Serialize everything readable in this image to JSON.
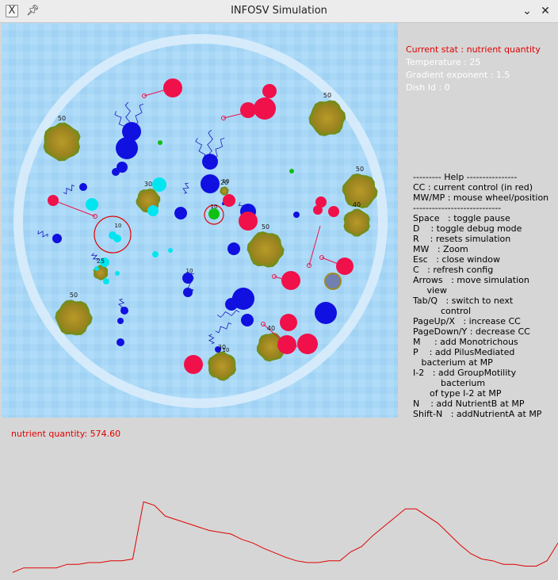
{
  "window": {
    "title": "INFOSV Simulation",
    "app_icon": "x-app-icon",
    "pin_icon": "pin-icon",
    "minimize_icon": "chevron-down-icon",
    "close_icon": "close-icon",
    "minimize_glyph": "⌄",
    "close_glyph": "✕"
  },
  "stats": {
    "current_stat": "Current stat : nutrient quantity",
    "temperature": "Temperature : 25",
    "gradient": "Gradient exponent : 1.5",
    "dish_id": "Dish Id : 0"
  },
  "help": {
    "lines": [
      "--------- Help ----------------",
      "CC : current control (in red)",
      "MW/MP : mouse wheel/position",
      "----------------------------",
      "Space   : toggle pause",
      "D    : toggle debug mode",
      "R    : resets simulation",
      "MW   : Zoom",
      "Esc   : close window",
      "C   : refresh config",
      "Arrows   : move simulation",
      "     view",
      "Tab/Q   : switch to next",
      "          control",
      "PageUp/X   : increase CC",
      "PageDown/Y : decrease CC",
      "M     : add Monotrichous",
      "P    : add PilusMediated",
      "   bacterium at MP",
      "I-2   : add GroupMotility",
      "          bacterium",
      "      of type I-2 at MP",
      "N    : add NutrientB at MP",
      "Shift-N   : addNutrientA at MP"
    ]
  },
  "colors": {
    "dish_background": "#a9d8f7",
    "dish_ring": "#ddeefc",
    "nutrient": "#a08a1e",
    "monotrichous": "#1010e0",
    "pilus": "#f0104a",
    "group_a": "#00e5f0",
    "group_b": "#10c010",
    "current_control": "#e00000",
    "graph_line": "#e00000"
  },
  "simulation": {
    "nutrient_labels": [
      {
        "label": "50"
      },
      {
        "label": "50"
      },
      {
        "label": "50"
      },
      {
        "label": "40"
      },
      {
        "label": "30"
      },
      {
        "label": "50"
      },
      {
        "label": "25"
      },
      {
        "label": "40"
      },
      {
        "label": "50"
      },
      {
        "label": "30"
      },
      {
        "label": "20"
      }
    ],
    "bacteria_labels": [
      {
        "label": "10"
      },
      {
        "label": "10"
      },
      {
        "label": "10"
      },
      {
        "label": "10"
      },
      {
        "label": "10"
      }
    ]
  },
  "graph": {
    "label": "nutrient quantity: 574.60",
    "values": [
      0.05,
      0.1,
      0.1,
      0.1,
      0.1,
      0.14,
      0.14,
      0.16,
      0.16,
      0.18,
      0.18,
      0.2,
      0.84,
      0.8,
      0.68,
      0.64,
      0.6,
      0.56,
      0.52,
      0.5,
      0.48,
      0.42,
      0.38,
      0.32,
      0.27,
      0.22,
      0.18,
      0.16,
      0.16,
      0.18,
      0.18,
      0.28,
      0.34,
      0.46,
      0.56,
      0.66,
      0.76,
      0.76,
      0.68,
      0.6,
      0.48,
      0.36,
      0.26,
      0.2,
      0.18,
      0.14,
      0.14,
      0.12,
      0.12,
      0.18,
      0.38
    ]
  }
}
